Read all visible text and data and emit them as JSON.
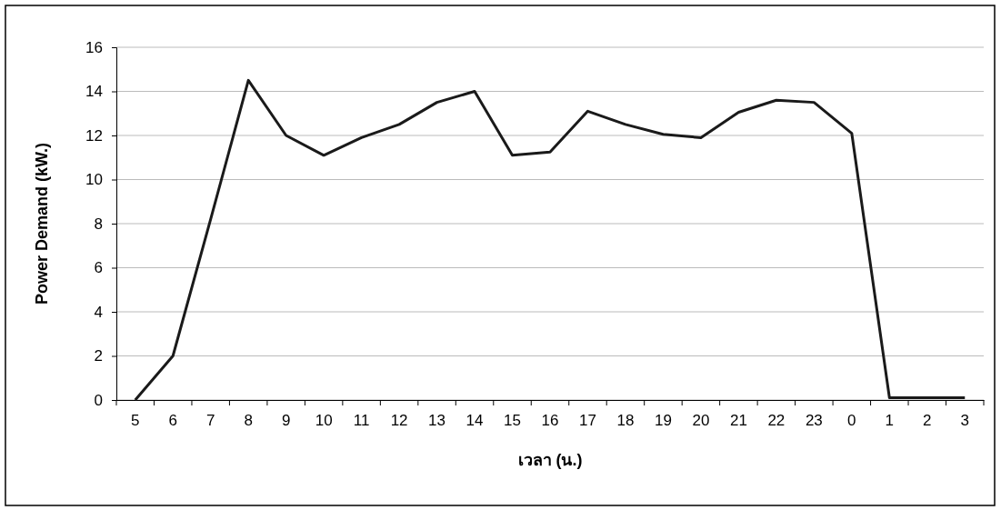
{
  "chart_data": {
    "type": "line",
    "xlabel": "เวลา (น.)",
    "ylabel": "Power Demand (kW.)",
    "categories": [
      "5",
      "6",
      "7",
      "8",
      "9",
      "10",
      "11",
      "12",
      "13",
      "14",
      "15",
      "16",
      "17",
      "18",
      "19",
      "20",
      "21",
      "22",
      "23",
      "0",
      "1",
      "2",
      "3"
    ],
    "series": [
      {
        "color": "#1a1a1a",
        "values": [
          0,
          2,
          8.2,
          14.5,
          12,
          11.1,
          11.9,
          12.5,
          13.5,
          14,
          11.1,
          11.25,
          13.1,
          12.5,
          12.05,
          11.9,
          13.05,
          13.6,
          13.5,
          12.1,
          0.1,
          0.1,
          0.1
        ]
      }
    ],
    "ylim": [
      0,
      16
    ],
    "yticks": [
      0,
      2,
      4,
      6,
      8,
      10,
      12,
      14,
      16
    ],
    "grid": "y",
    "marker": "none",
    "line_style": "solid"
  }
}
